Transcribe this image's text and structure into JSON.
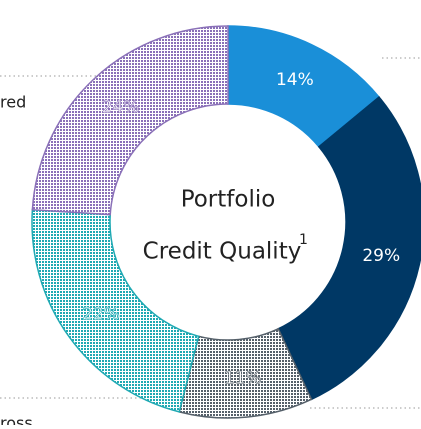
{
  "chart_data": {
    "type": "donut",
    "title": [
      "Portfolio",
      "Credit Quality"
    ],
    "title_footnote": "1",
    "values": [
      14,
      29,
      11,
      22,
      24
    ],
    "value_labels": [
      "14%",
      "29%",
      "11%",
      "22%",
      "24%"
    ],
    "colors": [
      "#1a8fd8",
      "#003865",
      "#55606a",
      "#1fa9b3",
      "#8a70b8"
    ],
    "hatched": [
      false,
      false,
      true,
      true,
      true
    ],
    "annotations": [
      "red",
      "ross"
    ]
  }
}
